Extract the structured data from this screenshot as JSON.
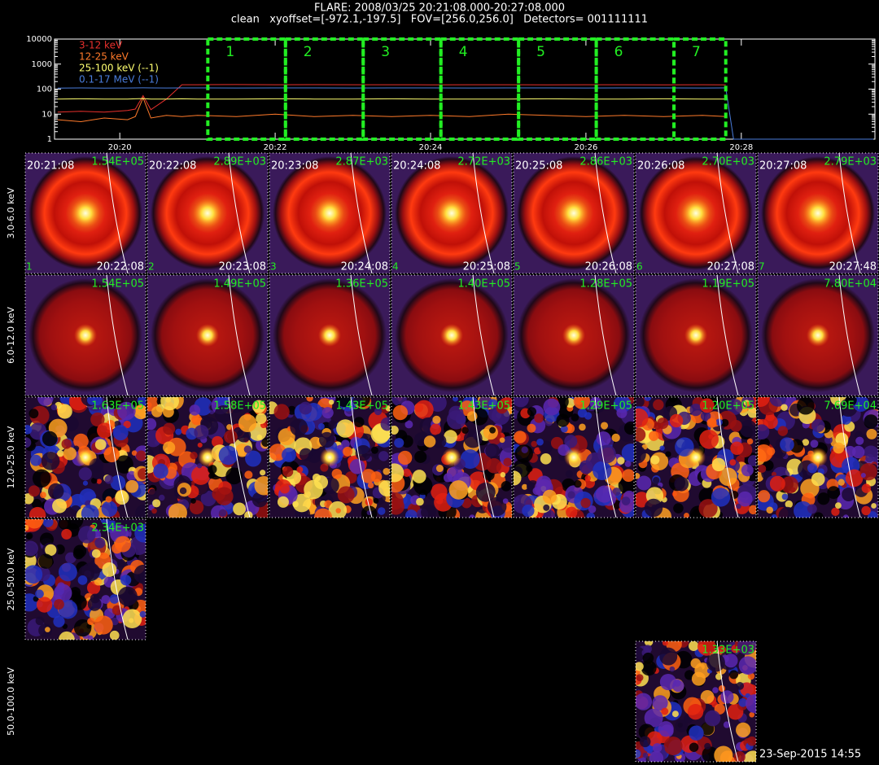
{
  "header": {
    "title": "FLARE: 2008/03/25 20:21:08.000-20:27:08.000",
    "subtitle": "clean   xyoffset=[-972.1,-197.5]   FOV=[256.0,256.0]   Detectors= 001111111"
  },
  "chart_data": {
    "type": "line",
    "log_y": true,
    "xlim": [
      19.16,
      29.72
    ],
    "xticks": [
      {
        "value": 20,
        "label": "20:20"
      },
      {
        "value": 22,
        "label": "20:22"
      },
      {
        "value": 24,
        "label": "20:24"
      },
      {
        "value": 26,
        "label": "20:26"
      },
      {
        "value": 28,
        "label": "20:28"
      }
    ],
    "ylim": [
      1,
      10000
    ],
    "yticks": [
      1,
      10,
      100,
      1000,
      10000
    ],
    "x": [
      19.2,
      19.5,
      19.8,
      20.1,
      20.2,
      20.3,
      20.4,
      20.6,
      20.8,
      21,
      21.5,
      22,
      22.5,
      23,
      23.5,
      24,
      24.5,
      25,
      25.5,
      26,
      26.5,
      27,
      27.5,
      27.8,
      27.9,
      28.5,
      29,
      29.7
    ],
    "series": [
      {
        "name": "3-12 keV",
        "color": "#e8302c",
        "values": [
          12,
          13,
          12,
          14,
          16,
          55,
          15,
          40,
          150,
          150,
          152,
          150,
          151,
          150,
          150,
          149,
          150,
          150,
          149,
          150,
          150,
          149,
          150,
          148,
          null,
          null,
          null,
          null
        ]
      },
      {
        "name": "12-25 keV",
        "color": "#ff7a2a",
        "values": [
          6,
          5,
          7,
          6,
          8,
          45,
          7,
          9,
          8,
          9,
          8,
          10,
          8,
          9,
          8,
          9,
          8,
          10,
          9,
          8,
          9,
          8,
          9,
          8,
          null,
          null,
          null,
          null
        ]
      },
      {
        "name": "25-100 keV (--1)",
        "color": "#ffff70",
        "values": [
          40,
          41,
          40,
          40,
          41,
          42,
          40,
          40,
          41,
          40,
          40,
          41,
          40,
          40,
          41,
          40,
          40,
          40,
          41,
          40,
          40,
          41,
          40,
          40,
          null,
          null,
          null,
          null
        ]
      },
      {
        "name": "0.1-17 MeV (--1)",
        "color": "#4a7ddc",
        "values": [
          110,
          112,
          110,
          111,
          112,
          113,
          112,
          111,
          112,
          112,
          111,
          112,
          112,
          111,
          112,
          112,
          111,
          112,
          112,
          111,
          112,
          112,
          111,
          112,
          1,
          1,
          1,
          1
        ]
      }
    ],
    "intervals": [
      {
        "label": "1",
        "start": 21.133,
        "end": 22.133
      },
      {
        "label": "2",
        "start": 22.133,
        "end": 23.133
      },
      {
        "label": "3",
        "start": 23.133,
        "end": 24.133
      },
      {
        "label": "4",
        "start": 24.133,
        "end": 25.133
      },
      {
        "label": "5",
        "start": 25.133,
        "end": 26.133
      },
      {
        "label": "6",
        "start": 26.133,
        "end": 27.133
      },
      {
        "label": "7",
        "start": 27.133,
        "end": 27.8
      }
    ]
  },
  "panels": {
    "rows": [
      {
        "label": "3.0-6.0 keV",
        "cells": [
          {
            "peak": "1.54E+05",
            "start": "20:21:08",
            "end": "20:22:08",
            "index": "1"
          },
          {
            "peak": "2.89E+03",
            "start": "20:22:08",
            "end": "20:23:08",
            "index": "2"
          },
          {
            "peak": "2.87E+03",
            "start": "20:23:08",
            "end": "20:24:08",
            "index": "3"
          },
          {
            "peak": "2.72E+03",
            "start": "20:24:08",
            "end": "20:25:08",
            "index": "4"
          },
          {
            "peak": "2.86E+03",
            "start": "20:25:08",
            "end": "20:26:08",
            "index": "5"
          },
          {
            "peak": "2.70E+03",
            "start": "20:26:08",
            "end": "20:27:08",
            "index": "6"
          },
          {
            "peak": "2.79E+03",
            "start": "20:27:08",
            "end": "20:27:48",
            "index": "7"
          }
        ]
      },
      {
        "label": "6.0-12.0 keV",
        "cells": [
          {
            "peak": "1.54E+05"
          },
          {
            "peak": "1.49E+05"
          },
          {
            "peak": "1.36E+05"
          },
          {
            "peak": "1.40E+05"
          },
          {
            "peak": "1.28E+05"
          },
          {
            "peak": "1.19E+05"
          },
          {
            "peak": "7.80E+04"
          }
        ]
      },
      {
        "label": "12.0-25.0 keV",
        "cells": [
          {
            "peak": "1.63E+05"
          },
          {
            "peak": "1.58E+05"
          },
          {
            "peak": "1.43E+05"
          },
          {
            "peak": "1.43E+05"
          },
          {
            "peak": "1.29E+05"
          },
          {
            "peak": "1.20E+05"
          },
          {
            "peak": "7.69E+04"
          }
        ]
      },
      {
        "label": "25.0-50.0 keV",
        "cells": [
          {
            "peak": "2.34E+03"
          },
          null,
          null,
          null,
          null,
          null,
          null
        ]
      },
      {
        "label": "50.0-100.0 keV",
        "cells": [
          null,
          null,
          null,
          null,
          null,
          {
            "peak": "1.33E+03"
          },
          null
        ]
      }
    ]
  },
  "footer": "23-Sep-2015 14:55"
}
